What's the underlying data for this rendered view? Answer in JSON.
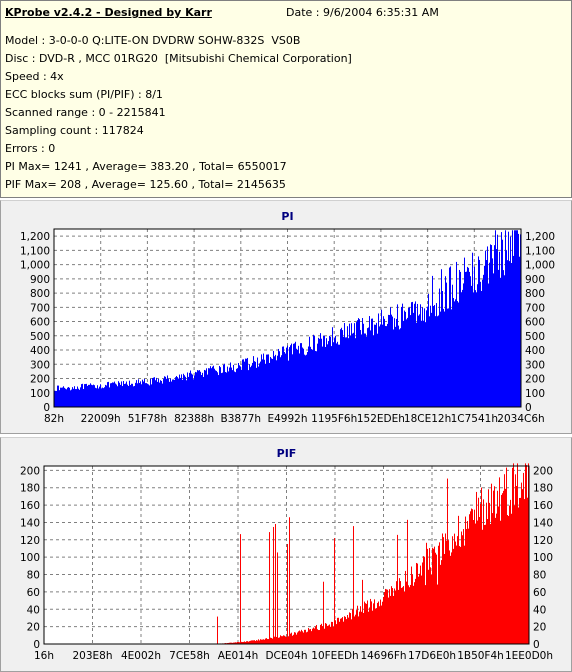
{
  "header": {
    "title": "KProbe v2.4.2 - Designed by Karr",
    "date": "Date : 9/6/2004 6:35:31 AM",
    "lines": [
      "Model : 3-0-0-0 Q:LITE-ON DVDRW SOHW-832S  VS0B",
      "Disc : DVD-R , MCC 01RG20  [Mitsubishi Chemical Corporation]",
      "Speed : 4x",
      "ECC blocks sum (PI/PIF) : 8/1",
      "Scanned range : 0 - 2215841",
      "Sampling count : 117824",
      "Errors : 0",
      "PI Max= 1241 , Average= 383.20 , Total= 6550017",
      "PIF Max= 208 , Average= 125.60 , Total= 2145635"
    ]
  },
  "colors": {
    "pi": "#0000ff",
    "pif": "#ff0000",
    "title_pi": "#000080",
    "title_pif": "#000080"
  },
  "chart_data": [
    {
      "type": "area",
      "title": "PI",
      "categories": [
        "82h",
        "22009h",
        "51F78h",
        "82388h",
        "B3877h",
        "E4992h",
        "1195F6h",
        "152EDEh",
        "18CE12h",
        "1C7541h",
        "2034C6h"
      ],
      "y_ticks": [
        "0",
        "100",
        "200",
        "300",
        "400",
        "500",
        "600",
        "700",
        "800",
        "900",
        "1,000",
        "1,100",
        "1,200"
      ],
      "ylim": [
        0,
        1250
      ],
      "grid": true,
      "max": 1241,
      "profile": [
        [
          0.0,
          130
        ],
        [
          0.1,
          150
        ],
        [
          0.2,
          175
        ],
        [
          0.3,
          230
        ],
        [
          0.4,
          290
        ],
        [
          0.5,
          380
        ],
        [
          0.6,
          500
        ],
        [
          0.7,
          600
        ],
        [
          0.8,
          700
        ],
        [
          0.88,
          850
        ],
        [
          0.95,
          1050
        ],
        [
          1.0,
          1100
        ]
      ]
    },
    {
      "type": "area",
      "title": "PIF",
      "categories": [
        "16h",
        "203E8h",
        "4E002h",
        "7CE58h",
        "AE014h",
        "DCE04h",
        "10FEEDh",
        "14696Fh",
        "17D6E0h",
        "1B50F4h",
        "1EE0D0h"
      ],
      "y_ticks": [
        "0",
        "20",
        "40",
        "60",
        "80",
        "100",
        "120",
        "140",
        "160",
        "180",
        "200"
      ],
      "ylim": [
        0,
        205
      ],
      "grid": true,
      "max": 208,
      "profile": [
        [
          0.0,
          0
        ],
        [
          0.35,
          0
        ],
        [
          0.42,
          3
        ],
        [
          0.5,
          10
        ],
        [
          0.6,
          25
        ],
        [
          0.7,
          55
        ],
        [
          0.8,
          100
        ],
        [
          0.9,
          160
        ],
        [
          1.0,
          200
        ]
      ]
    }
  ]
}
